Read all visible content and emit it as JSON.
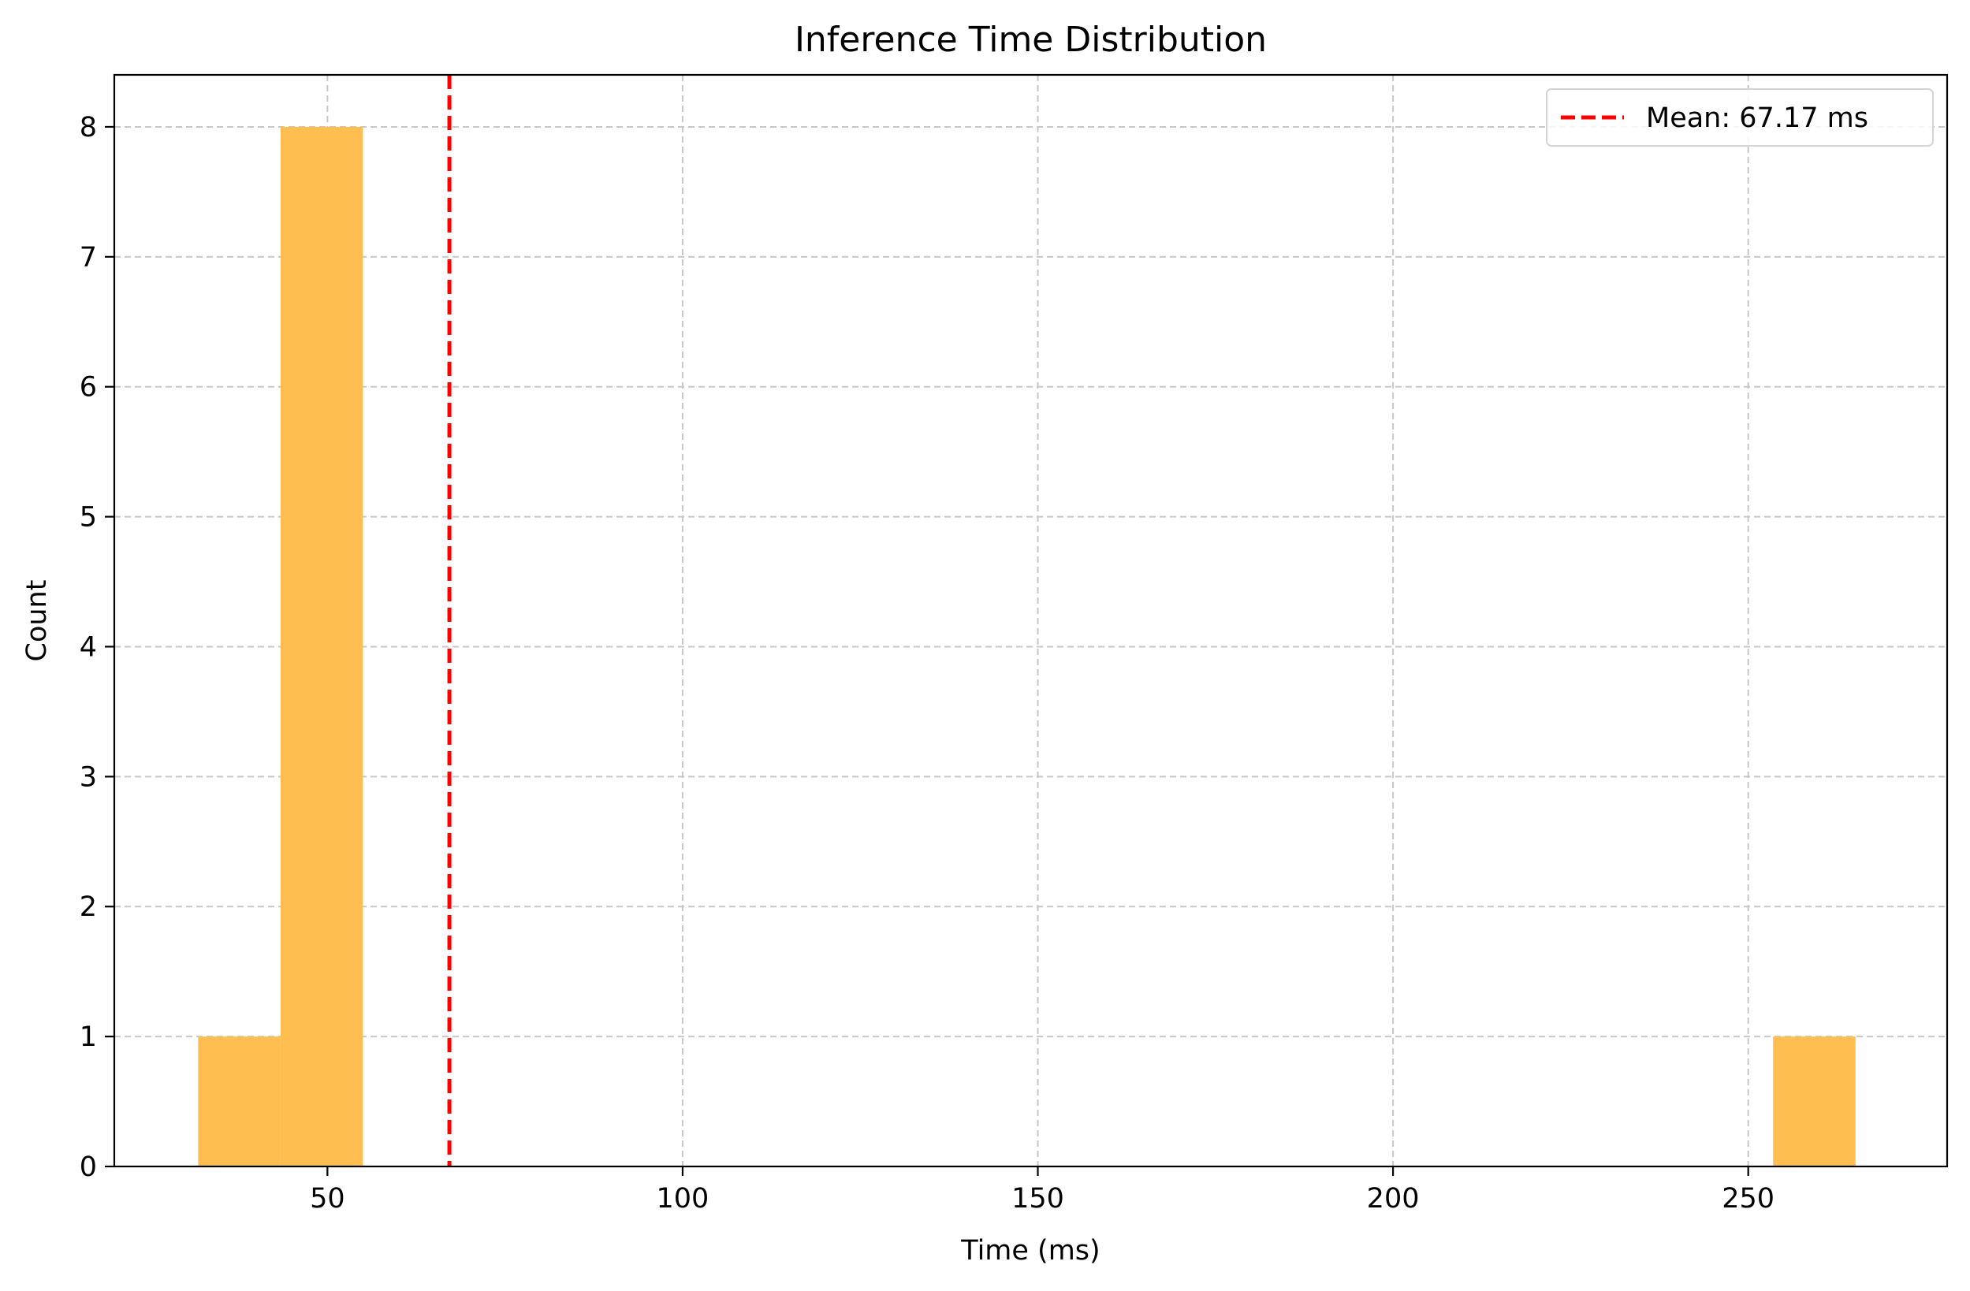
{
  "chart_data": {
    "type": "bar",
    "title": "Inference Time Distribution",
    "xlabel": "Time (ms)",
    "ylabel": "Count",
    "xlim": [
      20,
      278
    ],
    "ylim": [
      0,
      8.4
    ],
    "xticks": [
      50,
      100,
      150,
      200,
      250
    ],
    "yticks": [
      0,
      1,
      2,
      3,
      4,
      5,
      6,
      7,
      8
    ],
    "grid": true,
    "bars": [
      {
        "x0": 31.8,
        "x1": 43.4,
        "count": 1
      },
      {
        "x0": 43.4,
        "x1": 55.0,
        "count": 8
      },
      {
        "x0": 253.5,
        "x1": 265.1,
        "count": 1
      }
    ],
    "bar_color": "#ffbe4f",
    "mean_line": {
      "x": 67.17,
      "color": "#ff0000",
      "label": "Mean: 67.17 ms"
    },
    "legend": {
      "position": "top-right",
      "entries": [
        "Mean: 67.17 ms"
      ]
    }
  }
}
